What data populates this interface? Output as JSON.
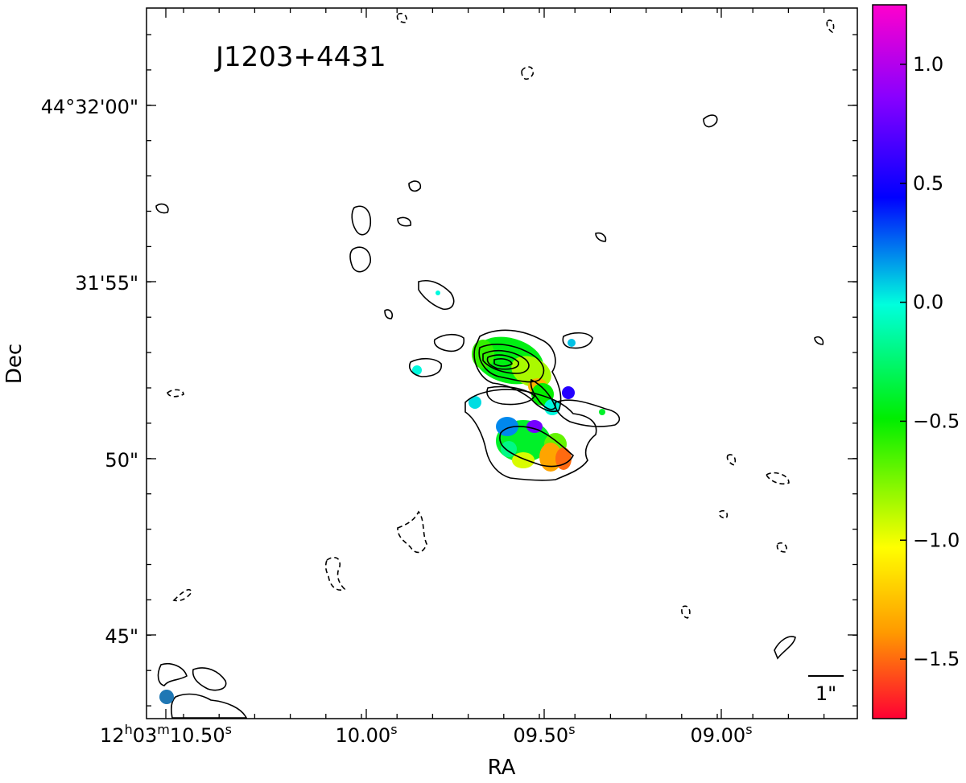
{
  "chart_data": {
    "type": "heatmap",
    "title": "J1203+4431",
    "xlabel": "RA",
    "ylabel": "Dec",
    "x_ticks": [
      {
        "label": "12h03m10.50s",
        "parts": {
          "a": "12",
          "h": "h",
          "b": "03",
          "m": "m",
          "c": "10.50",
          "s": "s"
        }
      },
      {
        "label": "10.00s",
        "parts": {
          "c": "10.00",
          "s": "s"
        }
      },
      {
        "label": "09.50s",
        "parts": {
          "c": "09.50",
          "s": "s"
        }
      },
      {
        "label": "09.00s",
        "parts": {
          "c": "09.00",
          "s": "s"
        }
      }
    ],
    "y_ticks": [
      "44°32'00\"",
      "31'55\"",
      "50\"",
      "45\""
    ],
    "colorbar": {
      "ticks": [
        "1.0",
        "0.5",
        "0.0",
        "−0.5",
        "−1.0",
        "−1.5"
      ],
      "tick_values": [
        1.0,
        0.5,
        0.0,
        -0.5,
        -1.0,
        -1.5
      ],
      "range": [
        -1.75,
        1.25
      ],
      "colormap": [
        "#ff0033",
        "#ff9900",
        "#ffff00",
        "#00ee00",
        "#00ffdd",
        "#0000ff",
        "#8800ff",
        "#ff00cc"
      ]
    },
    "scale_bar": "1\"",
    "beam_color": "#1f77b4",
    "colors": {
      "positive_contour": "#000000",
      "negative_contour": "dashed #000000"
    }
  }
}
